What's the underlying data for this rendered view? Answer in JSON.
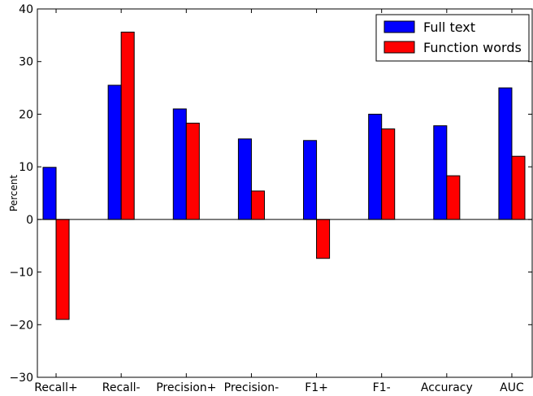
{
  "chart_data": {
    "type": "bar",
    "title": "",
    "xlabel": "",
    "ylabel": "Percent",
    "ylim": [
      -30,
      40
    ],
    "yticks": [
      -30,
      -20,
      -10,
      0,
      10,
      20,
      30,
      40
    ],
    "grid": false,
    "legend_position": "top-right",
    "categories": [
      "Recall+",
      "Recall-",
      "Precision+",
      "Precision-",
      "F1+",
      "F1-",
      "Accuracy",
      "AUC"
    ],
    "series": [
      {
        "name": "Full text",
        "color": "#0000ff",
        "values": [
          9.9,
          25.5,
          21.0,
          15.3,
          15.0,
          20.0,
          17.8,
          25.0
        ]
      },
      {
        "name": "Function words",
        "color": "#ff0000",
        "values": [
          -19.0,
          35.6,
          18.3,
          5.4,
          -7.4,
          17.2,
          8.3,
          12.0
        ]
      }
    ]
  }
}
